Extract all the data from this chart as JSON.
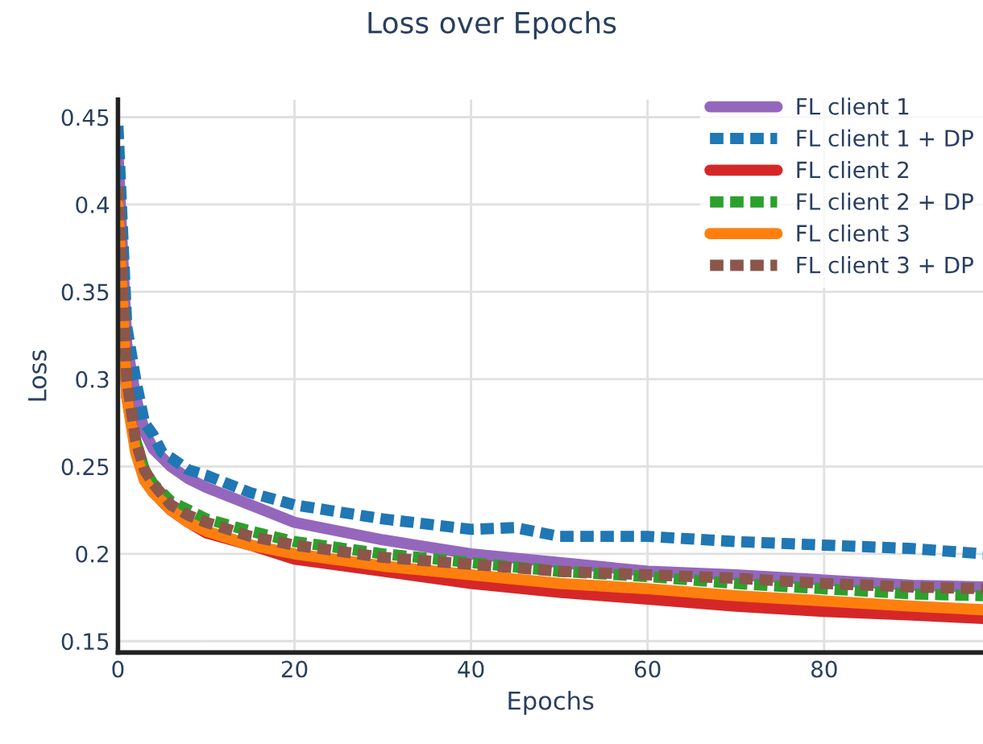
{
  "chart_data": {
    "type": "line",
    "title": "Loss over Epochs",
    "xlabel": "Epochs",
    "ylabel": "Loss",
    "xlim": [
      0,
      98
    ],
    "xticks": [
      0,
      20,
      40,
      60,
      80
    ],
    "ylim": [
      0.1435,
      0.46
    ],
    "yticks": [
      0.15,
      {
        "value": 0.2,
        "label": "0.2"
      },
      0.25,
      {
        "value": 0.3,
        "label": "0.3"
      },
      0.35,
      {
        "value": 0.4,
        "label": "0.4"
      },
      0.45
    ],
    "grid": true,
    "legend": "top right",
    "series": [
      {
        "name": "FL client 1",
        "color": "#9467bd",
        "line_style": "solid",
        "x": [
          0,
          1,
          2,
          3,
          4,
          5,
          6,
          8,
          10,
          15,
          20,
          30,
          40,
          50,
          60,
          70,
          80,
          90,
          98
        ],
        "values": [
          0.43,
          0.32,
          0.29,
          0.27,
          0.26,
          0.255,
          0.25,
          0.243,
          0.238,
          0.228,
          0.218,
          0.208,
          0.2,
          0.195,
          0.19,
          0.188,
          0.185,
          0.182,
          0.181
        ]
      },
      {
        "name": "FL client 1 + DP",
        "color": "#1f77b4",
        "line_style": "dashed",
        "x": [
          0,
          1,
          2,
          3,
          4,
          5,
          6,
          8,
          10,
          15,
          20,
          30,
          40,
          45,
          50,
          60,
          70,
          80,
          90,
          98
        ],
        "values": [
          0.445,
          0.33,
          0.3,
          0.275,
          0.268,
          0.258,
          0.255,
          0.248,
          0.245,
          0.235,
          0.228,
          0.22,
          0.214,
          0.215,
          0.21,
          0.21,
          0.207,
          0.205,
          0.203,
          0.2
        ]
      },
      {
        "name": "FL client 2",
        "color": "#d62728",
        "line_style": "solid",
        "x": [
          0,
          1,
          2,
          3,
          4,
          5,
          6,
          8,
          10,
          15,
          20,
          30,
          40,
          50,
          60,
          70,
          80,
          90,
          98
        ],
        "values": [
          0.4,
          0.29,
          0.26,
          0.245,
          0.238,
          0.23,
          0.225,
          0.218,
          0.212,
          0.205,
          0.197,
          0.19,
          0.183,
          0.178,
          0.174,
          0.17,
          0.167,
          0.165,
          0.163
        ]
      },
      {
        "name": "FL client 2 + DP",
        "color": "#2ca02c",
        "line_style": "dashed",
        "x": [
          2,
          3,
          4,
          6,
          8,
          10,
          15,
          20,
          30,
          40,
          50,
          60,
          70,
          80,
          90,
          98
        ],
        "values": [
          0.265,
          0.248,
          0.24,
          0.23,
          0.225,
          0.22,
          0.213,
          0.207,
          0.2,
          0.195,
          0.19,
          0.187,
          0.183,
          0.18,
          0.177,
          0.176
        ]
      },
      {
        "name": "FL client 3",
        "color": "#ff7f0e",
        "line_style": "solid",
        "x": [
          0,
          1,
          2,
          3,
          4,
          6,
          8,
          10,
          15,
          20,
          30,
          40,
          50,
          60,
          70,
          80,
          90,
          98
        ],
        "values": [
          0.4,
          0.29,
          0.258,
          0.242,
          0.235,
          0.225,
          0.218,
          0.213,
          0.205,
          0.2,
          0.193,
          0.188,
          0.183,
          0.18,
          0.176,
          0.173,
          0.17,
          0.168
        ]
      },
      {
        "name": "FL client 3 + DP",
        "color": "#8c564b",
        "line_style": "dashed",
        "x": [
          0,
          1,
          2,
          3,
          4,
          6,
          8,
          10,
          15,
          20,
          30,
          40,
          50,
          60,
          70,
          80,
          90,
          98
        ],
        "values": [
          0.41,
          0.3,
          0.265,
          0.248,
          0.24,
          0.228,
          0.222,
          0.218,
          0.21,
          0.205,
          0.198,
          0.194,
          0.19,
          0.188,
          0.186,
          0.183,
          0.181,
          0.18
        ]
      }
    ]
  }
}
